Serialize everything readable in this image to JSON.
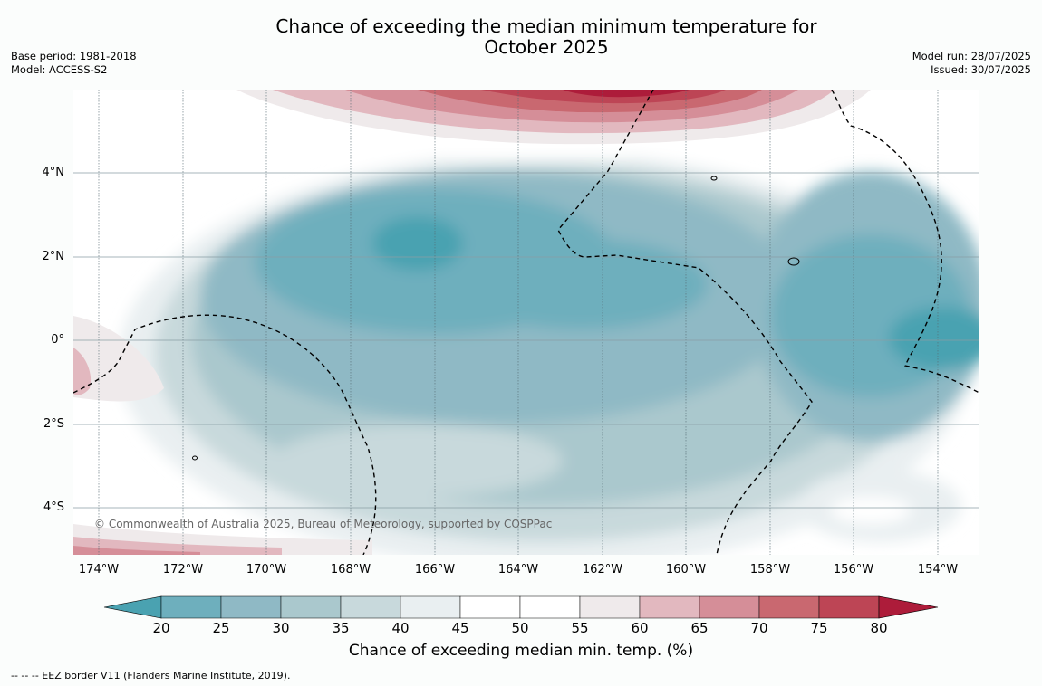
{
  "title_line1": "Chance of exceeding the median minimum temperature for",
  "title_line2": "October 2025",
  "meta_left": {
    "base_period": "Base period: 1981-2018",
    "model": "Model: ACCESS-S2"
  },
  "meta_right": {
    "model_run": "Model run: 28/07/2025",
    "issued": "Issued: 30/07/2025"
  },
  "map": {
    "lat_labels": [
      "4°N",
      "2°N",
      "0°",
      "2°S",
      "4°S"
    ],
    "lon_labels": [
      "174°W",
      "172°W",
      "170°W",
      "168°W",
      "166°W",
      "164°W",
      "162°W",
      "160°W",
      "158°W",
      "156°W",
      "154°W"
    ],
    "credit": "© Commonwealth of Australia 2025, Bureau of Meteorology, supported by COSPPac"
  },
  "colorbar": {
    "ticks": [
      "20",
      "25",
      "30",
      "35",
      "40",
      "45",
      "50",
      "55",
      "60",
      "65",
      "70",
      "75",
      "80"
    ],
    "colors": [
      "#4aa2b1",
      "#6eafbd",
      "#8fb9c5",
      "#aac8cd",
      "#c8d9dc",
      "#e9eff1",
      "#ffffff",
      "#ffffff",
      "#efeaeb",
      "#e2b8bf",
      "#d58e98",
      "#c96870",
      "#bd4555",
      "#ad1c3a"
    ],
    "title": "Chance of exceeding median min. temp. (%)"
  },
  "legend_note": "--  --  -- EEZ border V11 (Flanders Marine Institute, 2019)."
}
